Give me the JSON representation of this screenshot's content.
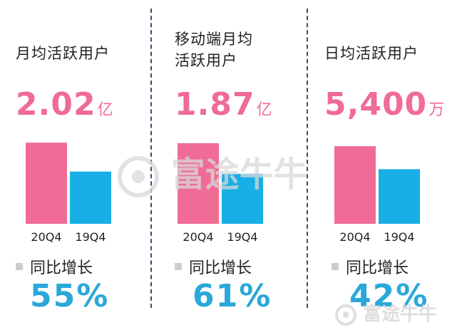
{
  "panels": [
    {
      "title": "月均活跃用户",
      "value": "2.02",
      "unit": "亿",
      "growth_label": "同比增长",
      "growth_value": "55%"
    },
    {
      "title": "移动端月均\n活跃用户",
      "value": "1.87",
      "unit": "亿",
      "growth_label": "同比增长",
      "growth_value": "61%"
    },
    {
      "title": "日均活跃用户",
      "value": "5,400",
      "unit": "万",
      "growth_label": "同比增长",
      "growth_value": "42%"
    }
  ],
  "watermark": "富途牛牛",
  "colors": {
    "current": "#f06b95",
    "prior": "#18aee6",
    "growth": "#2aa8d9",
    "divider": "#3a4a7a"
  },
  "chart_data": [
    {
      "type": "bar",
      "categories": [
        "20Q4",
        "19Q4"
      ],
      "values": [
        2.02,
        1.3
      ],
      "ylim": [
        0,
        2.2
      ]
    },
    {
      "type": "bar",
      "categories": [
        "20Q4",
        "19Q4"
      ],
      "values": [
        1.87,
        1.16
      ],
      "ylim": [
        0,
        2.05
      ]
    },
    {
      "type": "bar",
      "categories": [
        "20Q4",
        "19Q4"
      ],
      "values": [
        5400,
        3800
      ],
      "ylim": [
        0,
        6150
      ]
    }
  ]
}
